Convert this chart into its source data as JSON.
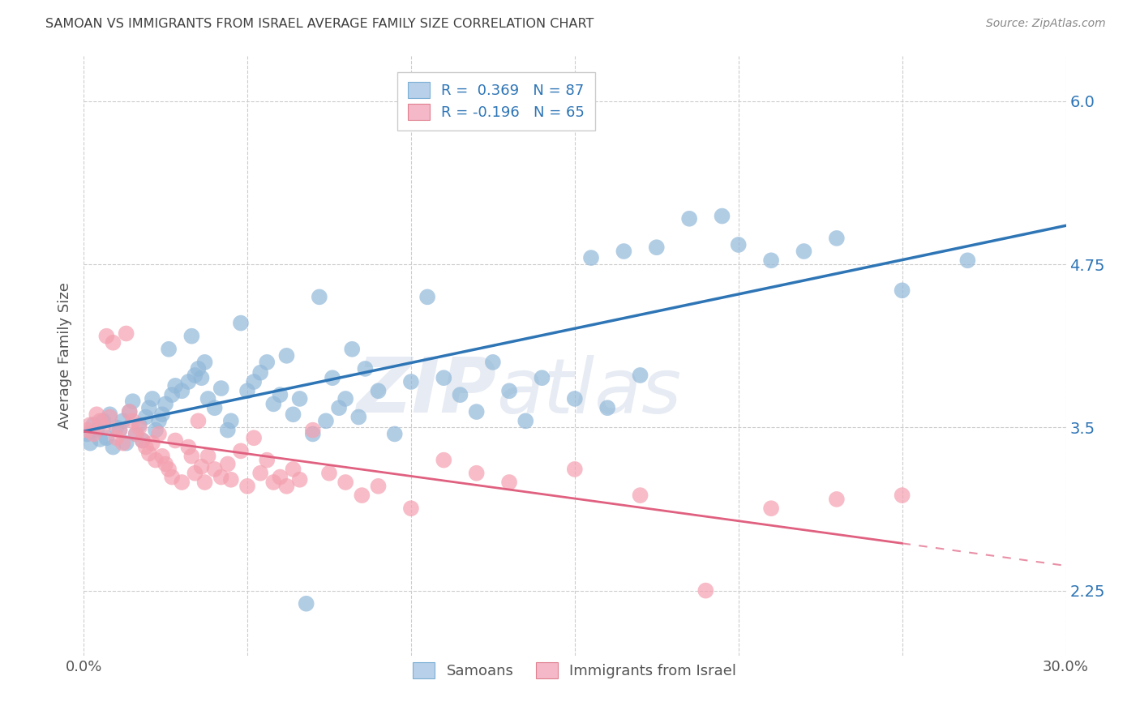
{
  "title": "SAMOAN VS IMMIGRANTS FROM ISRAEL AVERAGE FAMILY SIZE CORRELATION CHART",
  "source": "Source: ZipAtlas.com",
  "ylabel": "Average Family Size",
  "xlim": [
    0.0,
    0.3
  ],
  "ylim": [
    1.75,
    6.35
  ],
  "yticks": [
    2.25,
    3.5,
    4.75,
    6.0
  ],
  "xtick_positions": [
    0.0,
    0.05,
    0.1,
    0.15,
    0.2,
    0.25,
    0.3
  ],
  "xtick_labels": [
    "0.0%",
    "",
    "",
    "",
    "",
    "",
    "30.0%"
  ],
  "samoans_color": "#91b8d9",
  "samoans_line_color": "#2e75b6",
  "israel_color": "#f4a0b0",
  "israel_line_color": "#e06080",
  "background_color": "#ffffff",
  "grid_color": "#cccccc",
  "title_color": "#404040",
  "axis_label_color": "#555555",
  "ytick_color": "#2e75b6",
  "samoan_points": [
    [
      0.001,
      3.45
    ],
    [
      0.002,
      3.38
    ],
    [
      0.003,
      3.52
    ],
    [
      0.004,
      3.48
    ],
    [
      0.005,
      3.41
    ],
    [
      0.006,
      3.55
    ],
    [
      0.007,
      3.42
    ],
    [
      0.008,
      3.6
    ],
    [
      0.009,
      3.35
    ],
    [
      0.01,
      3.5
    ],
    [
      0.011,
      3.48
    ],
    [
      0.012,
      3.55
    ],
    [
      0.013,
      3.38
    ],
    [
      0.014,
      3.62
    ],
    [
      0.015,
      3.7
    ],
    [
      0.016,
      3.45
    ],
    [
      0.017,
      3.52
    ],
    [
      0.018,
      3.4
    ],
    [
      0.019,
      3.58
    ],
    [
      0.02,
      3.65
    ],
    [
      0.021,
      3.72
    ],
    [
      0.022,
      3.48
    ],
    [
      0.023,
      3.55
    ],
    [
      0.024,
      3.6
    ],
    [
      0.025,
      3.68
    ],
    [
      0.026,
      4.1
    ],
    [
      0.027,
      3.75
    ],
    [
      0.028,
      3.82
    ],
    [
      0.03,
      3.78
    ],
    [
      0.032,
      3.85
    ],
    [
      0.033,
      4.2
    ],
    [
      0.034,
      3.9
    ],
    [
      0.035,
      3.95
    ],
    [
      0.036,
      3.88
    ],
    [
      0.037,
      4.0
    ],
    [
      0.038,
      3.72
    ],
    [
      0.04,
      3.65
    ],
    [
      0.042,
      3.8
    ],
    [
      0.044,
      3.48
    ],
    [
      0.045,
      3.55
    ],
    [
      0.048,
      4.3
    ],
    [
      0.05,
      3.78
    ],
    [
      0.052,
      3.85
    ],
    [
      0.054,
      3.92
    ],
    [
      0.056,
      4.0
    ],
    [
      0.058,
      3.68
    ],
    [
      0.06,
      3.75
    ],
    [
      0.062,
      4.05
    ],
    [
      0.064,
      3.6
    ],
    [
      0.066,
      3.72
    ],
    [
      0.068,
      2.15
    ],
    [
      0.07,
      3.45
    ],
    [
      0.072,
      4.5
    ],
    [
      0.074,
      3.55
    ],
    [
      0.076,
      3.88
    ],
    [
      0.078,
      3.65
    ],
    [
      0.08,
      3.72
    ],
    [
      0.082,
      4.1
    ],
    [
      0.084,
      3.58
    ],
    [
      0.086,
      3.95
    ],
    [
      0.09,
      3.78
    ],
    [
      0.095,
      3.45
    ],
    [
      0.1,
      3.85
    ],
    [
      0.105,
      4.5
    ],
    [
      0.11,
      3.88
    ],
    [
      0.115,
      3.75
    ],
    [
      0.12,
      3.62
    ],
    [
      0.125,
      4.0
    ],
    [
      0.13,
      3.78
    ],
    [
      0.135,
      3.55
    ],
    [
      0.14,
      3.88
    ],
    [
      0.15,
      3.72
    ],
    [
      0.155,
      4.8
    ],
    [
      0.16,
      3.65
    ],
    [
      0.165,
      4.85
    ],
    [
      0.17,
      3.9
    ],
    [
      0.175,
      4.88
    ],
    [
      0.185,
      5.1
    ],
    [
      0.195,
      5.12
    ],
    [
      0.2,
      4.9
    ],
    [
      0.21,
      4.78
    ],
    [
      0.22,
      4.85
    ],
    [
      0.23,
      4.95
    ],
    [
      0.25,
      4.55
    ],
    [
      0.27,
      4.78
    ]
  ],
  "israel_points": [
    [
      0.001,
      3.48
    ],
    [
      0.002,
      3.52
    ],
    [
      0.003,
      3.45
    ],
    [
      0.004,
      3.6
    ],
    [
      0.005,
      3.55
    ],
    [
      0.006,
      3.5
    ],
    [
      0.007,
      4.2
    ],
    [
      0.008,
      3.58
    ],
    [
      0.009,
      4.15
    ],
    [
      0.01,
      3.42
    ],
    [
      0.011,
      3.48
    ],
    [
      0.012,
      3.38
    ],
    [
      0.013,
      4.22
    ],
    [
      0.014,
      3.62
    ],
    [
      0.015,
      3.55
    ],
    [
      0.016,
      3.45
    ],
    [
      0.017,
      3.5
    ],
    [
      0.018,
      3.4
    ],
    [
      0.019,
      3.35
    ],
    [
      0.02,
      3.3
    ],
    [
      0.021,
      3.38
    ],
    [
      0.022,
      3.25
    ],
    [
      0.023,
      3.45
    ],
    [
      0.024,
      3.28
    ],
    [
      0.025,
      3.22
    ],
    [
      0.026,
      3.18
    ],
    [
      0.027,
      3.12
    ],
    [
      0.028,
      3.4
    ],
    [
      0.03,
      3.08
    ],
    [
      0.032,
      3.35
    ],
    [
      0.033,
      3.28
    ],
    [
      0.034,
      3.15
    ],
    [
      0.035,
      3.55
    ],
    [
      0.036,
      3.2
    ],
    [
      0.037,
      3.08
    ],
    [
      0.038,
      3.28
    ],
    [
      0.04,
      3.18
    ],
    [
      0.042,
      3.12
    ],
    [
      0.044,
      3.22
    ],
    [
      0.045,
      3.1
    ],
    [
      0.048,
      3.32
    ],
    [
      0.05,
      3.05
    ],
    [
      0.052,
      3.42
    ],
    [
      0.054,
      3.15
    ],
    [
      0.056,
      3.25
    ],
    [
      0.058,
      3.08
    ],
    [
      0.06,
      3.12
    ],
    [
      0.062,
      3.05
    ],
    [
      0.064,
      3.18
    ],
    [
      0.066,
      3.1
    ],
    [
      0.07,
      3.48
    ],
    [
      0.075,
      3.15
    ],
    [
      0.08,
      3.08
    ],
    [
      0.085,
      2.98
    ],
    [
      0.09,
      3.05
    ],
    [
      0.1,
      2.88
    ],
    [
      0.11,
      3.25
    ],
    [
      0.12,
      3.15
    ],
    [
      0.13,
      3.08
    ],
    [
      0.15,
      3.18
    ],
    [
      0.17,
      2.98
    ],
    [
      0.19,
      2.25
    ],
    [
      0.21,
      2.88
    ],
    [
      0.23,
      2.95
    ],
    [
      0.25,
      2.98
    ]
  ]
}
